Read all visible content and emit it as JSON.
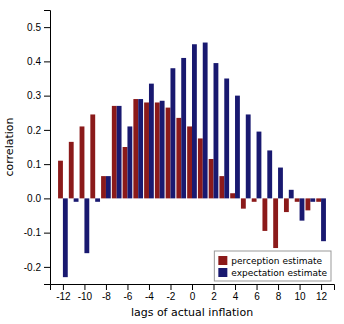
{
  "chart_data": {
    "type": "bar",
    "x": [
      -12,
      -11,
      -10,
      -9,
      -8,
      -7,
      -6,
      -5,
      -4,
      -3,
      -2,
      -1,
      0,
      1,
      2,
      3,
      4,
      5,
      6,
      7,
      8,
      9,
      10,
      11,
      12
    ],
    "series": [
      {
        "name": "perception estimate",
        "color": "#8B1A1A",
        "values": [
          0.11,
          0.165,
          0.21,
          0.245,
          0.065,
          0.27,
          0.15,
          0.29,
          0.28,
          0.28,
          0.265,
          0.235,
          0.21,
          0.175,
          0.115,
          0.065,
          0.015,
          -0.03,
          -0.01,
          -0.095,
          -0.145,
          -0.04,
          -0.01,
          -0.035,
          -0.01
        ]
      },
      {
        "name": "expectation estimate",
        "color": "#191970",
        "values": [
          -0.23,
          -0.01,
          -0.16,
          -0.01,
          0.065,
          0.27,
          0.21,
          0.29,
          0.335,
          0.285,
          0.38,
          0.41,
          0.45,
          0.455,
          0.395,
          0.35,
          0.3,
          0.245,
          0.195,
          0.14,
          0.09,
          0.025,
          -0.065,
          -0.01,
          -0.125
        ]
      }
    ],
    "xlabel": "lags of actual inflation",
    "ylabel": "correlation",
    "xlim": [
      -13.2,
      13.2
    ],
    "xticks": [
      -12,
      -10,
      -8,
      -6,
      -4,
      -2,
      0,
      2,
      4,
      6,
      8,
      10,
      12
    ],
    "ylim": [
      -0.25,
      0.55
    ],
    "yticks": [
      -0.2,
      -0.1,
      {
        "value": 0,
        "label": "0.0"
      },
      0.1,
      0.2,
      0.3,
      0.4,
      0.5
    ],
    "legend": "lower right",
    "grid": false
  }
}
